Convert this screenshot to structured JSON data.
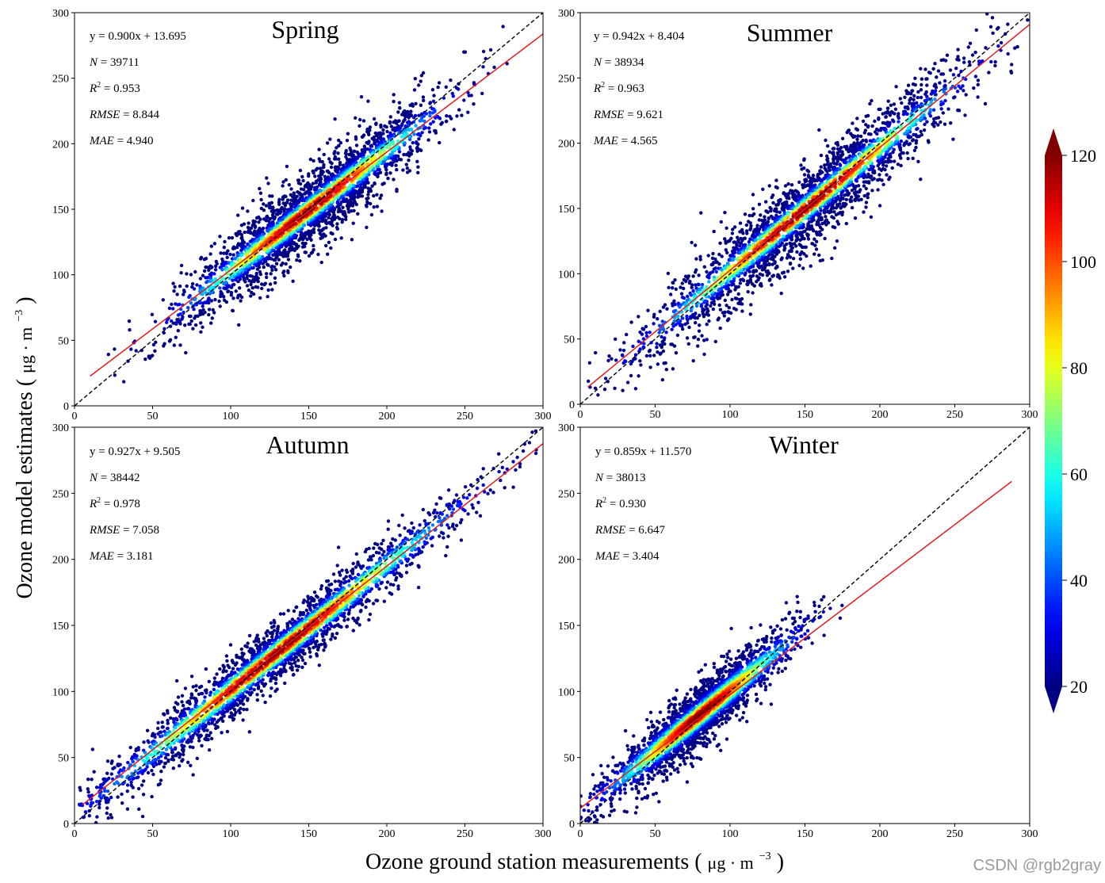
{
  "chart_data": [
    {
      "type": "scatter",
      "title": "Spring",
      "xlabel": "Ozone ground station measurements",
      "ylabel": "Ozone model estimates",
      "xlim": [
        0,
        300
      ],
      "ylim": [
        0,
        300
      ],
      "xticks": [
        0,
        50,
        100,
        150,
        200,
        250,
        300
      ],
      "yticks": [
        0,
        50,
        100,
        150,
        200,
        250,
        300
      ],
      "stats": {
        "equation": "y = 0.900x + 13.695",
        "n": "39711",
        "r2": "0.953",
        "rmse": "8.844",
        "mae": "4.940"
      },
      "fit": {
        "slope": 0.9,
        "intercept": 13.695,
        "x_range": [
          10,
          300
        ]
      },
      "identity_line": {
        "x_range": [
          0,
          300
        ]
      },
      "scatter_model": {
        "x_center": 150,
        "x_spread": 40,
        "x_min": 10,
        "x_max": 295,
        "y_slope": 0.92,
        "y_intercept": 11,
        "y_noise": 14,
        "points": 2600
      }
    },
    {
      "type": "scatter",
      "title": "Summer",
      "xlabel": "Ozone ground station measurements",
      "ylabel": "Ozone model estimates",
      "xlim": [
        0,
        300
      ],
      "ylim": [
        0,
        300
      ],
      "xticks": [
        0,
        50,
        100,
        150,
        200,
        250,
        300
      ],
      "yticks": [
        0,
        50,
        100,
        150,
        200,
        250,
        300
      ],
      "stats": {
        "equation": "y = 0.942x + 8.404",
        "n": "38934",
        "r2": "0.963",
        "rmse": "9.621",
        "mae": "4.565"
      },
      "fit": {
        "slope": 0.942,
        "intercept": 8.404,
        "x_range": [
          5,
          300
        ]
      },
      "identity_line": {
        "x_range": [
          0,
          300
        ]
      },
      "scatter_model": {
        "x_center": 150,
        "x_spread": 50,
        "x_min": 5,
        "x_max": 300,
        "y_slope": 0.95,
        "y_intercept": 7,
        "y_noise": 15,
        "points": 2600
      }
    },
    {
      "type": "scatter",
      "title": "Autumn",
      "xlabel": "Ozone ground station measurements",
      "ylabel": "Ozone model estimates",
      "xlim": [
        0,
        300
      ],
      "ylim": [
        0,
        300
      ],
      "xticks": [
        0,
        50,
        100,
        150,
        200,
        250,
        300
      ],
      "yticks": [
        0,
        50,
        100,
        150,
        200,
        250,
        300
      ],
      "stats": {
        "equation": "y = 0.927x + 9.505",
        "n": "38442",
        "r2": "0.978",
        "rmse": "7.058",
        "mae": "3.181"
      },
      "fit": {
        "slope": 0.927,
        "intercept": 9.505,
        "x_range": [
          5,
          300
        ]
      },
      "identity_line": {
        "x_range": [
          0,
          300
        ]
      },
      "scatter_model": {
        "x_center": 130,
        "x_spread": 55,
        "x_min": 3,
        "x_max": 300,
        "y_slope": 0.95,
        "y_intercept": 6,
        "y_noise": 11,
        "points": 2600
      }
    },
    {
      "type": "scatter",
      "title": "Winter",
      "xlabel": "Ozone ground station measurements",
      "ylabel": "Ozone model estimates",
      "xlim": [
        0,
        300
      ],
      "ylim": [
        0,
        300
      ],
      "xticks": [
        0,
        50,
        100,
        150,
        200,
        250,
        300
      ],
      "yticks": [
        0,
        50,
        100,
        150,
        200,
        250,
        300
      ],
      "stats": {
        "equation": "y = 0.859x + 11.570",
        "n": "38013",
        "r2": "0.930",
        "rmse": "6.647",
        "mae": "3.404"
      },
      "fit": {
        "slope": 0.859,
        "intercept": 11.57,
        "x_range": [
          0,
          288
        ]
      },
      "identity_line": {
        "x_range": [
          0,
          300
        ]
      },
      "scatter_model": {
        "x_center": 80,
        "x_spread": 30,
        "x_min": 0,
        "x_max": 175,
        "y_slope": 0.93,
        "y_intercept": 8,
        "y_noise": 11,
        "points": 2400
      }
    }
  ],
  "labels": {
    "y_axis": "Ozone model estimates",
    "x_axis": "Ozone ground station measurements",
    "unit": "μg · m",
    "unit_exponent": "−3"
  },
  "colorbar": {
    "ticks": [
      20,
      40,
      60,
      80,
      100,
      120
    ],
    "range": [
      20,
      120
    ],
    "colormap": [
      "#00007f",
      "#0000ff",
      "#007fff",
      "#00ffff",
      "#7fff7f",
      "#ffff00",
      "#ff7f00",
      "#ff0000",
      "#7f0000"
    ]
  },
  "colors": {
    "fit_line": "#e31a1c",
    "identity_line": "#000000",
    "low_density": "#00007f"
  },
  "watermark": "CSDN @rgb2gray"
}
